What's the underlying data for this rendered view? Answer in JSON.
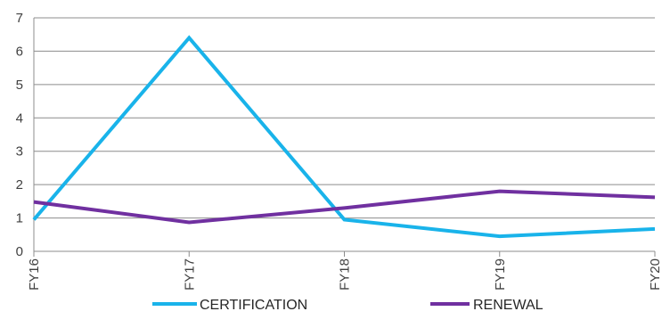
{
  "chart_data": {
    "type": "line",
    "categories": [
      "FY16",
      "FY17",
      "FY18",
      "FY19",
      "FY20"
    ],
    "ylim": [
      0,
      7
    ],
    "yticks": [
      0,
      1,
      2,
      3,
      4,
      5,
      6,
      7
    ],
    "grid": true,
    "legend_position": "bottom",
    "series": [
      {
        "name": "CERTIFICATION",
        "color": "#19b3ea",
        "values": [
          0.95,
          6.4,
          0.95,
          0.45,
          0.67
        ]
      },
      {
        "name": "RENEWAL",
        "color": "#7030a0",
        "values": [
          1.48,
          0.87,
          1.3,
          1.8,
          1.62
        ]
      }
    ]
  }
}
